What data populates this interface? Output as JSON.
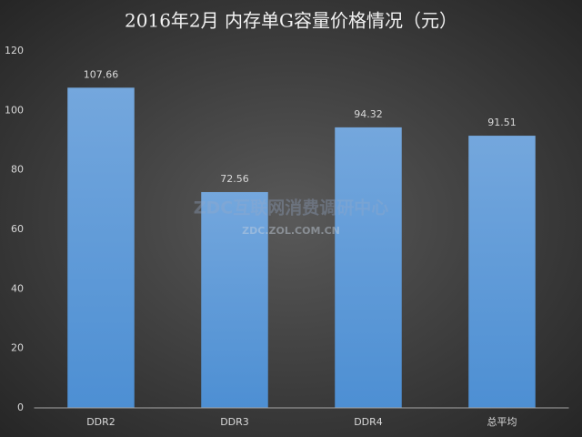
{
  "chart_data": {
    "type": "bar",
    "title": "2016年2月 内存单G容量价格情况（元）",
    "categories": [
      "DDR2",
      "DDR3",
      "DDR4",
      "总平均"
    ],
    "values": [
      107.66,
      72.56,
      94.32,
      91.51
    ],
    "color": "#5b9bd5",
    "ylim": [
      0,
      120
    ],
    "yticks": [
      0,
      20,
      40,
      60,
      80,
      100,
      120
    ],
    "grid": false,
    "watermark": [
      "ZDC互联网消费调研中心",
      "ZDC.ZOL.COM.CN"
    ]
  }
}
